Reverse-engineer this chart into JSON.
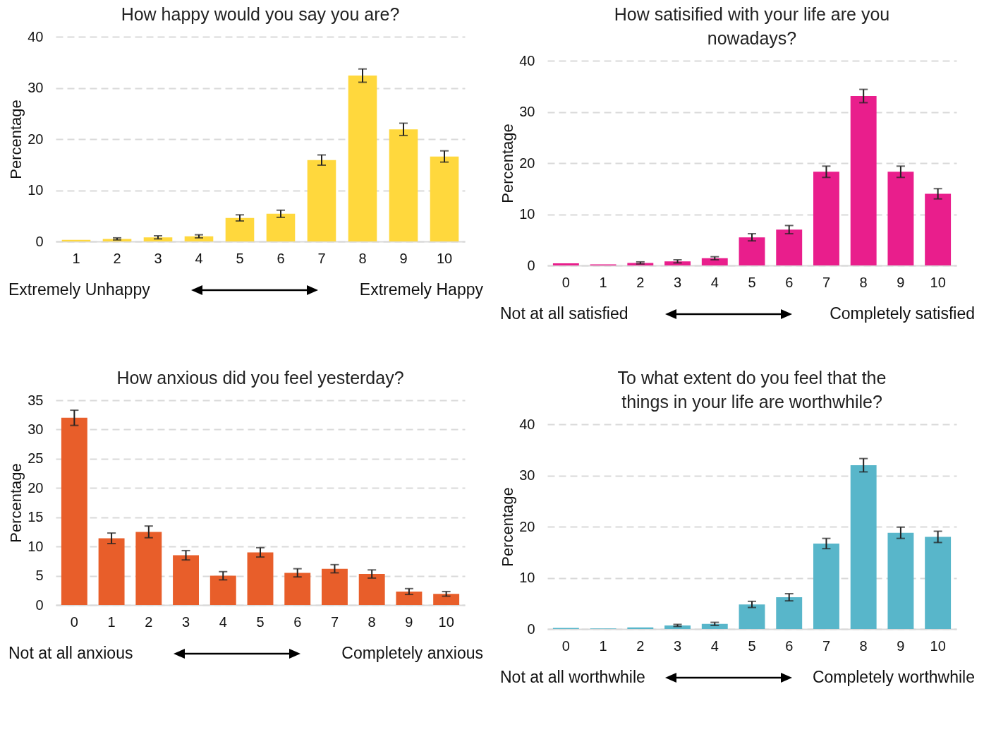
{
  "chart_data": [
    {
      "type": "bar",
      "title": "How happy would you say you are?",
      "ylabel": "Percentage",
      "categories": [
        "1",
        "2",
        "3",
        "4",
        "5",
        "6",
        "7",
        "8",
        "9",
        "10"
      ],
      "values": [
        0.3,
        0.5,
        0.8,
        1.0,
        4.6,
        5.4,
        15.9,
        32.4,
        21.9,
        16.6
      ],
      "errors": [
        null,
        0.2,
        0.3,
        0.3,
        0.6,
        0.7,
        1.0,
        1.3,
        1.2,
        1.1
      ],
      "color": "#ffd83d",
      "ylim": [
        0,
        40
      ],
      "yticks": [
        0,
        10,
        20,
        30,
        40
      ],
      "grid": "y",
      "annotations": [
        "Extremely Unhappy",
        "Extremely Happy"
      ]
    },
    {
      "type": "bar",
      "title": "How satisified with your life are you nowadays?",
      "ylabel": "Percentage",
      "categories": [
        "0",
        "1",
        "2",
        "3",
        "4",
        "5",
        "6",
        "7",
        "8",
        "9",
        "10"
      ],
      "values": [
        0.4,
        0.2,
        0.5,
        0.8,
        1.4,
        5.5,
        7.0,
        18.3,
        33.1,
        18.3,
        14.0
      ],
      "errors": [
        null,
        null,
        0.2,
        0.3,
        0.3,
        0.7,
        0.8,
        1.1,
        1.3,
        1.1,
        1.0
      ],
      "color": "#e91e8c",
      "ylim": [
        0,
        40
      ],
      "yticks": [
        0,
        10,
        20,
        30,
        40
      ],
      "grid": "y",
      "annotations": [
        "Not at all satisfied",
        "Completely satisfied"
      ]
    },
    {
      "type": "bar",
      "title": "How anxious did you feel yesterday?",
      "ylabel": "Percentage",
      "categories": [
        "0",
        "1",
        "2",
        "3",
        "4",
        "5",
        "6",
        "7",
        "8",
        "9",
        "10"
      ],
      "values": [
        32.0,
        11.4,
        12.5,
        8.5,
        5.0,
        9.0,
        5.5,
        6.2,
        5.3,
        2.3,
        1.9
      ],
      "errors": [
        1.3,
        0.9,
        1.0,
        0.8,
        0.7,
        0.8,
        0.7,
        0.7,
        0.7,
        0.5,
        0.4
      ],
      "color": "#e85e2a",
      "ylim": [
        0,
        35
      ],
      "yticks": [
        0,
        5,
        10,
        15,
        20,
        25,
        30,
        35
      ],
      "grid": "y",
      "annotations": [
        "Not at all anxious",
        "Completely anxious"
      ]
    },
    {
      "type": "bar",
      "title": "To what extent do you feel that the things in your life are worthwhile?",
      "ylabel": "Percentage",
      "categories": [
        "0",
        "1",
        "2",
        "3",
        "4",
        "5",
        "6",
        "7",
        "8",
        "9",
        "10"
      ],
      "values": [
        0.2,
        0.1,
        0.3,
        0.7,
        1.0,
        4.8,
        6.2,
        16.7,
        32.0,
        18.8,
        18.0
      ],
      "errors": [
        null,
        null,
        null,
        0.2,
        0.3,
        0.6,
        0.7,
        1.0,
        1.3,
        1.1,
        1.1
      ],
      "color": "#58b6ca",
      "ylim": [
        0,
        40
      ],
      "yticks": [
        0,
        10,
        20,
        30,
        40
      ],
      "grid": "y",
      "annotations": [
        "Not at all worthwhile",
        "Completely worthwhile"
      ]
    }
  ]
}
